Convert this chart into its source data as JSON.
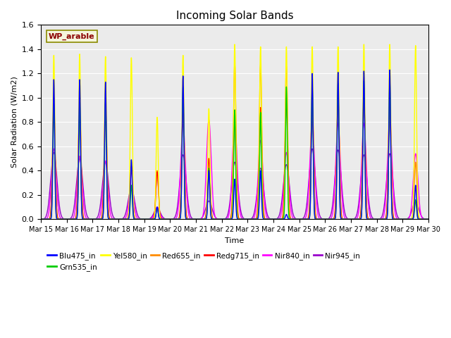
{
  "title": "Incoming Solar Bands",
  "xlabel": "Time",
  "ylabel": "Solar Radiation (W/m2)",
  "ylim": [
    0,
    1.6
  ],
  "yticks": [
    0.0,
    0.2,
    0.4,
    0.6,
    0.8,
    1.0,
    1.2,
    1.4,
    1.6
  ],
  "annotation_text": "WP_arable",
  "annotation_color": "#8B0000",
  "annotation_bg": "#F5F5DC",
  "plot_bg": "#EBEBEB",
  "legend_items": [
    {
      "label": "Blu475_in",
      "color": "#0000FF"
    },
    {
      "label": "Grn535_in",
      "color": "#00CC00"
    },
    {
      "label": "Yel580_in",
      "color": "#FFFF00"
    },
    {
      "label": "Red655_in",
      "color": "#FF8C00"
    },
    {
      "label": "Redg715_in",
      "color": "#FF0000"
    },
    {
      "label": "Nir840_in",
      "color": "#FF00FF"
    },
    {
      "label": "Nir945_in",
      "color": "#9900CC"
    }
  ],
  "day_peaks": [
    {
      "Yel580": 1.35,
      "Red655": 0.95,
      "Redg715": 0.93,
      "Nir840": 0.58,
      "Blu475": 1.15,
      "Grn535": 0.95,
      "Nir945": 0.55
    },
    {
      "Yel580": 1.36,
      "Red655": 0.96,
      "Redg715": 0.94,
      "Nir840": 0.52,
      "Blu475": 1.15,
      "Grn535": 0.96,
      "Nir945": 0.5
    },
    {
      "Yel580": 1.34,
      "Red655": 0.96,
      "Redg715": 0.88,
      "Nir840": 0.48,
      "Blu475": 1.13,
      "Grn535": 0.97,
      "Nir945": 0.47
    },
    {
      "Yel580": 1.33,
      "Red655": 0.44,
      "Redg715": 0.43,
      "Nir840": 0.27,
      "Blu475": 0.49,
      "Grn535": 0.28,
      "Nir945": 0.26
    },
    {
      "Yel580": 0.84,
      "Red655": 0.4,
      "Redg715": 0.39,
      "Nir840": 0.1,
      "Blu475": 0.1,
      "Grn535": 0.1,
      "Nir945": 0.09
    },
    {
      "Yel580": 1.35,
      "Red655": 0.94,
      "Redg715": 0.93,
      "Nir840": 0.78,
      "Blu475": 1.18,
      "Grn535": 1.09,
      "Nir945": 0.53
    },
    {
      "Yel580": 0.91,
      "Red655": 0.5,
      "Redg715": 0.5,
      "Nir840": 0.82,
      "Blu475": 0.4,
      "Grn535": 0.42,
      "Nir945": 0.15
    },
    {
      "Yel580": 1.44,
      "Red655": 1.28,
      "Redg715": 0.9,
      "Nir840": 0.8,
      "Blu475": 0.33,
      "Grn535": 0.9,
      "Nir945": 0.47
    },
    {
      "Yel580": 1.42,
      "Red655": 1.27,
      "Redg715": 0.92,
      "Nir840": 0.65,
      "Blu475": 0.4,
      "Grn535": 0.88,
      "Nir945": 0.42
    },
    {
      "Yel580": 1.42,
      "Red655": 1.26,
      "Redg715": 0.99,
      "Nir840": 0.55,
      "Blu475": 0.04,
      "Grn535": 1.09,
      "Nir945": 0.45
    },
    {
      "Yel580": 1.42,
      "Red655": 0.99,
      "Redg715": 0.98,
      "Nir840": 0.79,
      "Blu475": 1.2,
      "Grn535": 1.09,
      "Nir945": 0.58
    },
    {
      "Yel580": 1.42,
      "Red655": 0.99,
      "Redg715": 0.99,
      "Nir840": 0.79,
      "Blu475": 1.21,
      "Grn535": 1.12,
      "Nir945": 0.57
    },
    {
      "Yel580": 1.44,
      "Red655": 0.99,
      "Redg715": 0.99,
      "Nir840": 0.79,
      "Blu475": 1.22,
      "Grn535": 1.14,
      "Nir945": 0.53
    },
    {
      "Yel580": 1.44,
      "Red655": 0.99,
      "Redg715": 0.99,
      "Nir840": 0.79,
      "Blu475": 1.23,
      "Grn535": 1.14,
      "Nir945": 0.54
    },
    {
      "Yel580": 1.43,
      "Red655": 0.47,
      "Redg715": 0.15,
      "Nir840": 0.54,
      "Blu475": 0.28,
      "Grn535": 0.16,
      "Nir945": 0.15
    }
  ],
  "band_sigmas": {
    "Yel580": 0.04,
    "Red655": 0.05,
    "Redg715": 0.05,
    "Nir840": 0.09,
    "Blu475": 0.035,
    "Grn535": 0.035,
    "Nir945": 0.12
  }
}
